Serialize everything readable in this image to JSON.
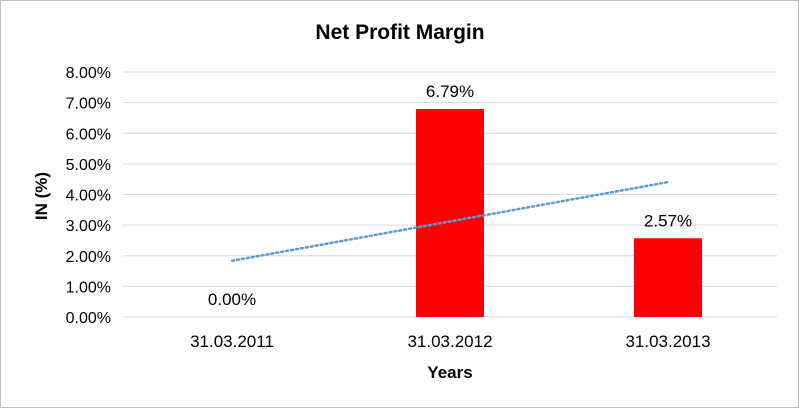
{
  "chart_data": {
    "type": "bar",
    "title": "Net Profit Margin",
    "xlabel": "Years",
    "ylabel": "IN (%)",
    "categories": [
      "31.03.2011",
      "31.03.2012",
      "31.03.2013"
    ],
    "series": [
      {
        "values": [
          0.0,
          6.79,
          2.57
        ],
        "data_labels": [
          "0.00%",
          "6.79%",
          "2.57%"
        ],
        "color": "#ff0000"
      }
    ],
    "trendline": {
      "type": "linear",
      "style": "dotted",
      "color": "#5b9bd5"
    },
    "ylim": [
      0,
      8
    ],
    "yticks": [
      0,
      1,
      2,
      3,
      4,
      5,
      6,
      7,
      8
    ],
    "ytick_labels": [
      "0.00%",
      "1.00%",
      "2.00%",
      "3.00%",
      "4.00%",
      "5.00%",
      "6.00%",
      "7.00%",
      "8.00%"
    ],
    "grid": true,
    "legend": "none"
  }
}
